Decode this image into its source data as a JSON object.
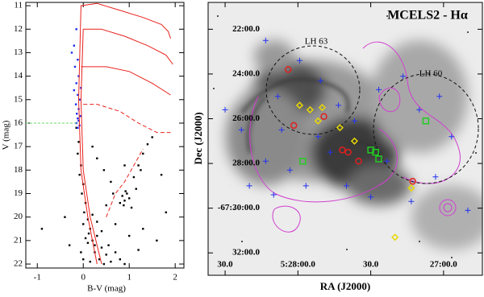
{
  "chart_data": [
    {
      "type": "scatter",
      "xlabel": "B-V (mag)",
      "ylabel": "V (mag)",
      "xlim": [
        -1.25,
        2.19
      ],
      "ylim": [
        22.17,
        10.86
      ],
      "xticks": [
        -1,
        0,
        1,
        2
      ],
      "yticks": [
        11,
        12,
        13,
        14,
        15,
        16,
        17,
        18,
        19,
        20,
        21,
        22
      ],
      "series": [
        {
          "color": "#000000",
          "x": [
            -0.15,
            -0.1,
            -0.12,
            -0.05,
            -0.08,
            0.0,
            -0.03,
            0.05,
            0.02,
            0.1,
            0.0,
            0.15,
            0.3,
            0.2,
            0.1,
            0.4,
            0.25,
            0.5,
            0.35,
            0.15,
            0.6,
            0.45,
            0.05,
            0.3,
            0.2,
            0.4,
            0.55,
            0.7,
            0.8,
            0.9,
            -0.05,
            0.0,
            0.12,
            0.25,
            0.85,
            0.9,
            0.95,
            0.88,
            1.0,
            0.92,
            0.8,
            1.05,
            1.1,
            1.2,
            1.3,
            1.4,
            1.5,
            1.25,
            1.15,
            0.5,
            0.6,
            0.3,
            0.7,
            1.3,
            1.6,
            -0.9,
            1.8,
            0.45,
            1.0,
            0.65,
            1.2,
            -0.3,
            -0.4,
            0.2,
            0.9,
            1.7
          ],
          "y": [
            16.2,
            16.8,
            17.3,
            17.8,
            18.2,
            18.6,
            19.0,
            19.4,
            19.8,
            20.1,
            20.3,
            20.5,
            20.8,
            21.0,
            21.1,
            21.3,
            21.5,
            21.6,
            21.8,
            21.9,
            21.9,
            22.0,
            20.9,
            20.2,
            19.9,
            20.6,
            21.2,
            21.5,
            21.8,
            22.0,
            21.5,
            21.8,
            20.7,
            21.2,
            19.1,
            19.3,
            19.0,
            19.5,
            19.2,
            18.9,
            19.4,
            19.6,
            18.3,
            17.8,
            17.3,
            16.9,
            16.6,
            18.0,
            18.8,
            19.5,
            18.5,
            17.5,
            20.3,
            20.5,
            21.0,
            20.5,
            19.8,
            18.0,
            20.8,
            19.0,
            21.4,
            21.2,
            20.0,
            17.0,
            17.8,
            18.2
          ]
        },
        {
          "color": "#1a2cf0",
          "x": [
            -0.15,
            -0.2,
            -0.12,
            -0.18,
            -0.1,
            -0.15,
            -0.2,
            -0.12,
            -0.08,
            -0.16,
            -0.1,
            -0.14,
            -0.06,
            -0.12,
            -0.1,
            -0.15,
            -0.08,
            -0.12,
            -0.25,
            -0.05
          ],
          "y": [
            12.0,
            12.7,
            13.3,
            13.6,
            14.0,
            14.3,
            14.6,
            14.8,
            15.0,
            15.2,
            15.4,
            15.6,
            15.7,
            15.8,
            15.9,
            16.0,
            16.1,
            16.2,
            13.0,
            14.5
          ]
        }
      ],
      "lines": [
        {
          "color": "#e8211c",
          "dash": false,
          "x": [
            0.3,
            0.1,
            -0.05,
            -0.1,
            -0.05,
            0.3,
            0.8,
            1.3,
            1.7,
            1.85,
            1.9
          ],
          "y": [
            22,
            20,
            18,
            15,
            11,
            10.9,
            11.2,
            11.5,
            11.8,
            12.1,
            12.4
          ]
        },
        {
          "color": "#e8211c",
          "dash": false,
          "x": [
            0.4,
            0.15,
            0.0,
            -0.05,
            0.0,
            0.4,
            0.9,
            1.4,
            1.8,
            1.95
          ],
          "y": [
            22,
            20,
            18,
            15,
            12,
            12,
            12.3,
            12.7,
            13.1,
            13.5
          ]
        },
        {
          "color": "#e8211c",
          "dash": false,
          "x": [
            -0.05,
            0.1,
            0.5,
            1.0,
            1.5,
            1.9
          ],
          "y": [
            13.6,
            13.6,
            13.6,
            13.8,
            14.3,
            14.8
          ]
        },
        {
          "color": "#e8211c",
          "dash": true,
          "x": [
            0.0,
            0.3,
            0.8,
            1.2,
            1.6,
            1.9
          ],
          "y": [
            15.2,
            15.2,
            15.5,
            16.0,
            16.4,
            16.4
          ]
        },
        {
          "color": "#e8211c",
          "dash": true,
          "x": [
            0.5,
            0.7,
            0.9,
            1.1,
            1.3
          ],
          "y": [
            20,
            19,
            18.5,
            17.8,
            17.1
          ]
        }
      ],
      "hline": {
        "y": 16,
        "color": "#66dd66"
      }
    },
    {
      "type": "image",
      "title": "MCELS2 - Hα",
      "xlabel": "RA (J2000)",
      "ylabel": "Dec (J2000)",
      "annotations": [
        "LH 63",
        "LH 60"
      ],
      "xlim": [
        1717,
        1604
      ],
      "ylim": [
        33.0,
        20.8
      ],
      "xticks": [
        {
          "value": 1710,
          "label": "30.0"
        },
        {
          "value": 1680,
          "label": "5:28:00.0"
        },
        {
          "value": 1650,
          "label": "30.0"
        },
        {
          "value": 1620,
          "label": "27:00.0"
        }
      ],
      "yticks": [
        {
          "value": 22,
          "label": "22:00.0"
        },
        {
          "value": 24,
          "label": "24:00.0"
        },
        {
          "value": 26,
          "label": "26:00.0"
        },
        {
          "value": 28,
          "label": "28:00.0"
        },
        {
          "value": 30,
          "label": "-67:30:00.0"
        },
        {
          "value": 32,
          "label": "32:00.0"
        }
      ],
      "series": [
        {
          "marker": "cross",
          "color": "#2233ee",
          "x": [
            1693.3,
            1679.3,
            1670.7,
            1688.3,
            1663.3,
            1656.7,
            1703.3,
            1693.3,
            1683.3,
            1671.7,
            1646.7,
            1636.7,
            1630.0,
            1621.7,
            1616.7,
            1643.3,
            1660.0,
            1676.7,
            1690.0,
            1700.0,
            1650.0,
            1633.3,
            1623.3,
            1686.7,
            1666.7,
            1710.0,
            1610.0
          ],
          "y": [
            22.5,
            23.4,
            24.3,
            25.0,
            25.4,
            26.1,
            26.5,
            27.9,
            28.3,
            26.8,
            24.7,
            24.1,
            25.6,
            25.0,
            26.8,
            27.9,
            29.0,
            29.0,
            29.4,
            29.0,
            29.5,
            29.7,
            28.6,
            26.5,
            27.5,
            25.6,
            30.1
          ]
        },
        {
          "marker": "circle",
          "color": "#e02020",
          "x": [
            1684.0,
            1661.7,
            1659.3,
            1669.3,
            1632.7,
            1681.7,
            1655.0
          ],
          "y": [
            23.8,
            27.4,
            27.5,
            25.9,
            28.8,
            26.3,
            27.9
          ]
        },
        {
          "marker": "diamond",
          "color": "#e8d800",
          "x": [
            1679.3,
            1675.0,
            1670.0,
            1662.7,
            1656.7,
            1633.3,
            1640.0,
            1671.7
          ],
          "y": [
            25.4,
            25.6,
            25.5,
            26.4,
            27.0,
            29.1,
            31.3,
            26.1
          ]
        },
        {
          "marker": "square",
          "color": "#22cc22",
          "x": [
            1627.3,
            1650.0,
            1648.0,
            1646.7,
            1678.0
          ],
          "y": [
            26.1,
            27.4,
            27.5,
            27.8,
            27.9
          ]
        }
      ]
    }
  ]
}
